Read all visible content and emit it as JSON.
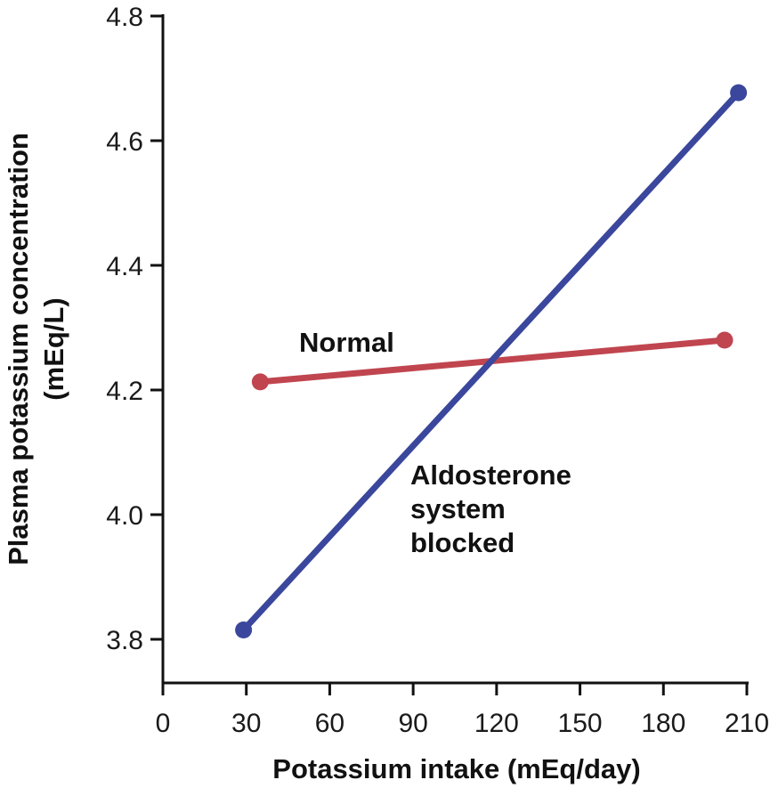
{
  "chart_data": {
    "type": "line",
    "xlabel": "Potassium intake (mEq/day)",
    "ylabel": "Plasma potassium concentration",
    "ylabel_units": "(mEq/L)",
    "xlim": [
      0,
      210
    ],
    "ylim": [
      3.73,
      4.8
    ],
    "x_ticks": [
      0,
      30,
      60,
      90,
      120,
      150,
      180,
      210
    ],
    "y_ticks": [
      3.8,
      4.0,
      4.2,
      4.4,
      4.6,
      4.8
    ],
    "x_tick_labels": [
      "0",
      "30",
      "60",
      "90",
      "120",
      "150",
      "180",
      "210"
    ],
    "y_tick_labels": [
      "3.8",
      "4.0",
      "4.2",
      "4.4",
      "4.6",
      "4.8"
    ],
    "grid": false,
    "legend": "none",
    "series": [
      {
        "name": "Normal",
        "label_lines": [
          "Normal"
        ],
        "color": "#c0454f",
        "x": [
          35,
          202
        ],
        "y": [
          4.213,
          4.28
        ]
      },
      {
        "name": "Aldosterone system blocked",
        "label_lines": [
          "Aldosterone",
          "system",
          "blocked"
        ],
        "color": "#3a479c",
        "x": [
          29,
          207
        ],
        "y": [
          3.815,
          4.677
        ]
      }
    ]
  }
}
